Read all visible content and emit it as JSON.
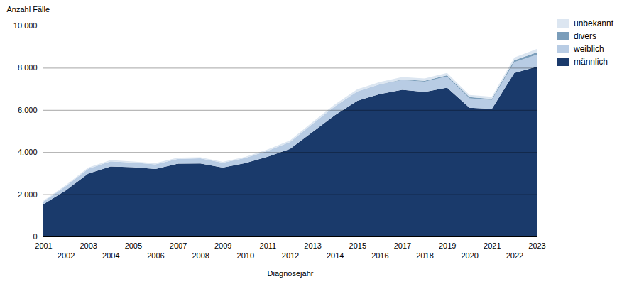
{
  "chart_data": {
    "type": "area",
    "stacked": true,
    "x_label": "Diagnosejahr",
    "y_label": "Anzahl Fälle",
    "x": [
      2001,
      2002,
      2003,
      2004,
      2005,
      2006,
      2007,
      2008,
      2009,
      2010,
      2011,
      2012,
      2013,
      2014,
      2015,
      2016,
      2017,
      2018,
      2019,
      2020,
      2021,
      2022,
      2023
    ],
    "series": [
      {
        "name": "männlich",
        "color": "#1a3a6b",
        "values": [
          1520,
          2180,
          2980,
          3320,
          3280,
          3200,
          3450,
          3460,
          3270,
          3480,
          3780,
          4150,
          4950,
          5750,
          6430,
          6750,
          6950,
          6850,
          7050,
          6100,
          6050,
          7750,
          8050
        ]
      },
      {
        "name": "weiblich",
        "color": "#b8cce4",
        "values": [
          130,
          200,
          230,
          240,
          220,
          220,
          230,
          240,
          220,
          240,
          280,
          330,
          390,
          420,
          450,
          460,
          470,
          490,
          530,
          450,
          420,
          520,
          570
        ]
      },
      {
        "name": "divers",
        "color": "#7a9dba",
        "values": [
          0,
          0,
          0,
          0,
          0,
          0,
          0,
          0,
          0,
          0,
          0,
          0,
          0,
          0,
          0,
          0,
          25,
          45,
          65,
          55,
          55,
          85,
          110
        ]
      },
      {
        "name": "unbekannt",
        "color": "#dce6f1",
        "values": [
          40,
          50,
          55,
          60,
          55,
          55,
          55,
          55,
          45,
          55,
          65,
          75,
          85,
          95,
          100,
          110,
          110,
          110,
          110,
          100,
          100,
          130,
          160
        ]
      }
    ],
    "xlim": [
      2001,
      2023
    ],
    "xticks": [
      2001,
      2002,
      2003,
      2004,
      2005,
      2006,
      2007,
      2008,
      2009,
      2010,
      2011,
      2012,
      2013,
      2014,
      2015,
      2016,
      2017,
      2018,
      2019,
      2020,
      2021,
      2022,
      2023
    ],
    "ylim": [
      0,
      10000
    ],
    "yticks": [
      0,
      {
        "value": 2000,
        "label": "2.000"
      },
      {
        "value": 4000,
        "label": "4.000"
      },
      {
        "value": 6000,
        "label": "6.000"
      },
      {
        "value": 8000,
        "label": "8.000"
      },
      {
        "value": 10000,
        "label": "10.000"
      }
    ],
    "grid": true,
    "legend": "upper right"
  }
}
